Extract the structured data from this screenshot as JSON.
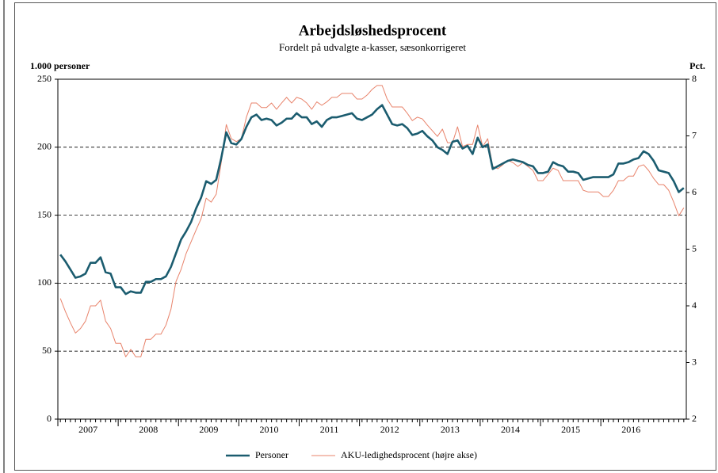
{
  "chart_data": {
    "type": "line",
    "title": "Arbejdsløshedsprocent",
    "subtitle": "Fordelt på udvalgte a-kasser, sæsonkorrigeret",
    "y_label": "1.000 personer",
    "y2_label": "Pct.",
    "categories": [
      null,
      null,
      null,
      null,
      null,
      null,
      "2007",
      null,
      null,
      null,
      null,
      null,
      null,
      null,
      null,
      null,
      null,
      null,
      "2008",
      null,
      null,
      null,
      null,
      null,
      null,
      null,
      null,
      null,
      null,
      null,
      "2009",
      null,
      null,
      null,
      null,
      null,
      null,
      null,
      null,
      null,
      null,
      null,
      "2010",
      null,
      null,
      null,
      null,
      null,
      null,
      null,
      null,
      null,
      null,
      null,
      "2011",
      null,
      null,
      null,
      null,
      null,
      null,
      null,
      null,
      null,
      null,
      null,
      "2012",
      null,
      null,
      null,
      null,
      null,
      null,
      null,
      null,
      null,
      null,
      null,
      "2013",
      null,
      null,
      null,
      null,
      null,
      null,
      null,
      null,
      null,
      null,
      null,
      "2014",
      null,
      null,
      null,
      null,
      null,
      null,
      null,
      null,
      null,
      null,
      null,
      "2015",
      null,
      null,
      null,
      null,
      null,
      null,
      null,
      null,
      null,
      null,
      null,
      "2016",
      null,
      null,
      null,
      null,
      null,
      null,
      null,
      null,
      null,
      null
    ],
    "series": [
      {
        "name": "Personer",
        "color": "#1b5c6f",
        "axis": "y",
        "values": [
          121,
          116,
          110,
          104,
          105,
          107,
          115,
          115,
          119,
          108,
          107,
          97,
          97,
          92,
          94,
          93,
          93,
          101,
          101,
          103,
          103,
          105,
          112,
          122,
          132,
          138,
          145,
          155,
          163,
          175,
          173,
          176,
          192,
          211,
          203,
          202,
          206,
          215,
          222,
          224,
          220,
          221,
          220,
          216,
          218,
          221,
          221,
          225,
          222,
          222,
          217,
          219,
          215,
          220,
          222,
          222,
          223,
          224,
          225,
          221,
          220,
          222,
          224,
          228,
          231,
          224,
          217,
          216,
          217,
          214,
          209,
          210,
          212,
          208,
          205,
          200,
          198,
          195,
          204,
          205,
          199,
          201,
          195,
          207,
          200,
          202,
          184,
          186,
          188,
          190,
          191,
          190,
          189,
          187,
          186,
          181,
          181,
          182,
          189,
          187,
          186,
          182,
          182,
          181,
          176,
          177,
          178,
          178,
          178,
          178,
          180,
          188,
          188,
          189,
          191,
          192,
          197,
          195,
          190,
          183,
          182,
          181,
          175,
          167,
          170
        ]
      },
      {
        "name": "AKU-ledighedsprocent (højre akse)",
        "color": "#e8836b",
        "axis": "y2",
        "values": [
          4.13,
          3.9,
          3.7,
          3.52,
          3.6,
          3.73,
          4.0,
          4.0,
          4.1,
          3.73,
          3.6,
          3.34,
          3.34,
          3.1,
          3.23,
          3.1,
          3.1,
          3.41,
          3.41,
          3.5,
          3.5,
          3.66,
          3.94,
          4.43,
          4.64,
          4.92,
          5.13,
          5.34,
          5.54,
          5.9,
          5.83,
          5.97,
          6.53,
          7.2,
          6.95,
          6.9,
          6.95,
          7.33,
          7.58,
          7.58,
          7.5,
          7.5,
          7.58,
          7.47,
          7.58,
          7.68,
          7.58,
          7.68,
          7.65,
          7.58,
          7.47,
          7.6,
          7.54,
          7.6,
          7.68,
          7.68,
          7.75,
          7.75,
          7.75,
          7.65,
          7.65,
          7.72,
          7.82,
          7.89,
          7.89,
          7.65,
          7.51,
          7.51,
          7.51,
          7.4,
          7.27,
          7.33,
          7.3,
          7.19,
          7.09,
          6.99,
          7.12,
          6.88,
          6.88,
          7.16,
          6.81,
          6.85,
          6.85,
          7.19,
          6.81,
          6.95,
          6.46,
          6.42,
          6.49,
          6.57,
          6.53,
          6.46,
          6.53,
          6.46,
          6.39,
          6.21,
          6.21,
          6.32,
          6.43,
          6.39,
          6.21,
          6.21,
          6.21,
          6.21,
          6.04,
          6.01,
          6.01,
          6.01,
          5.93,
          5.93,
          6.04,
          6.21,
          6.21,
          6.29,
          6.29,
          6.46,
          6.49,
          6.39,
          6.25,
          6.14,
          6.14,
          6.04,
          5.83,
          5.59,
          5.73
        ]
      }
    ],
    "ylim": [
      0,
      250
    ],
    "yticks": [
      0,
      50,
      100,
      150,
      200,
      250
    ],
    "y2lim": [
      2,
      8
    ],
    "y2ticks": [
      2,
      3,
      4,
      5,
      6,
      7,
      8
    ],
    "grid": true,
    "legend": "bottom"
  }
}
